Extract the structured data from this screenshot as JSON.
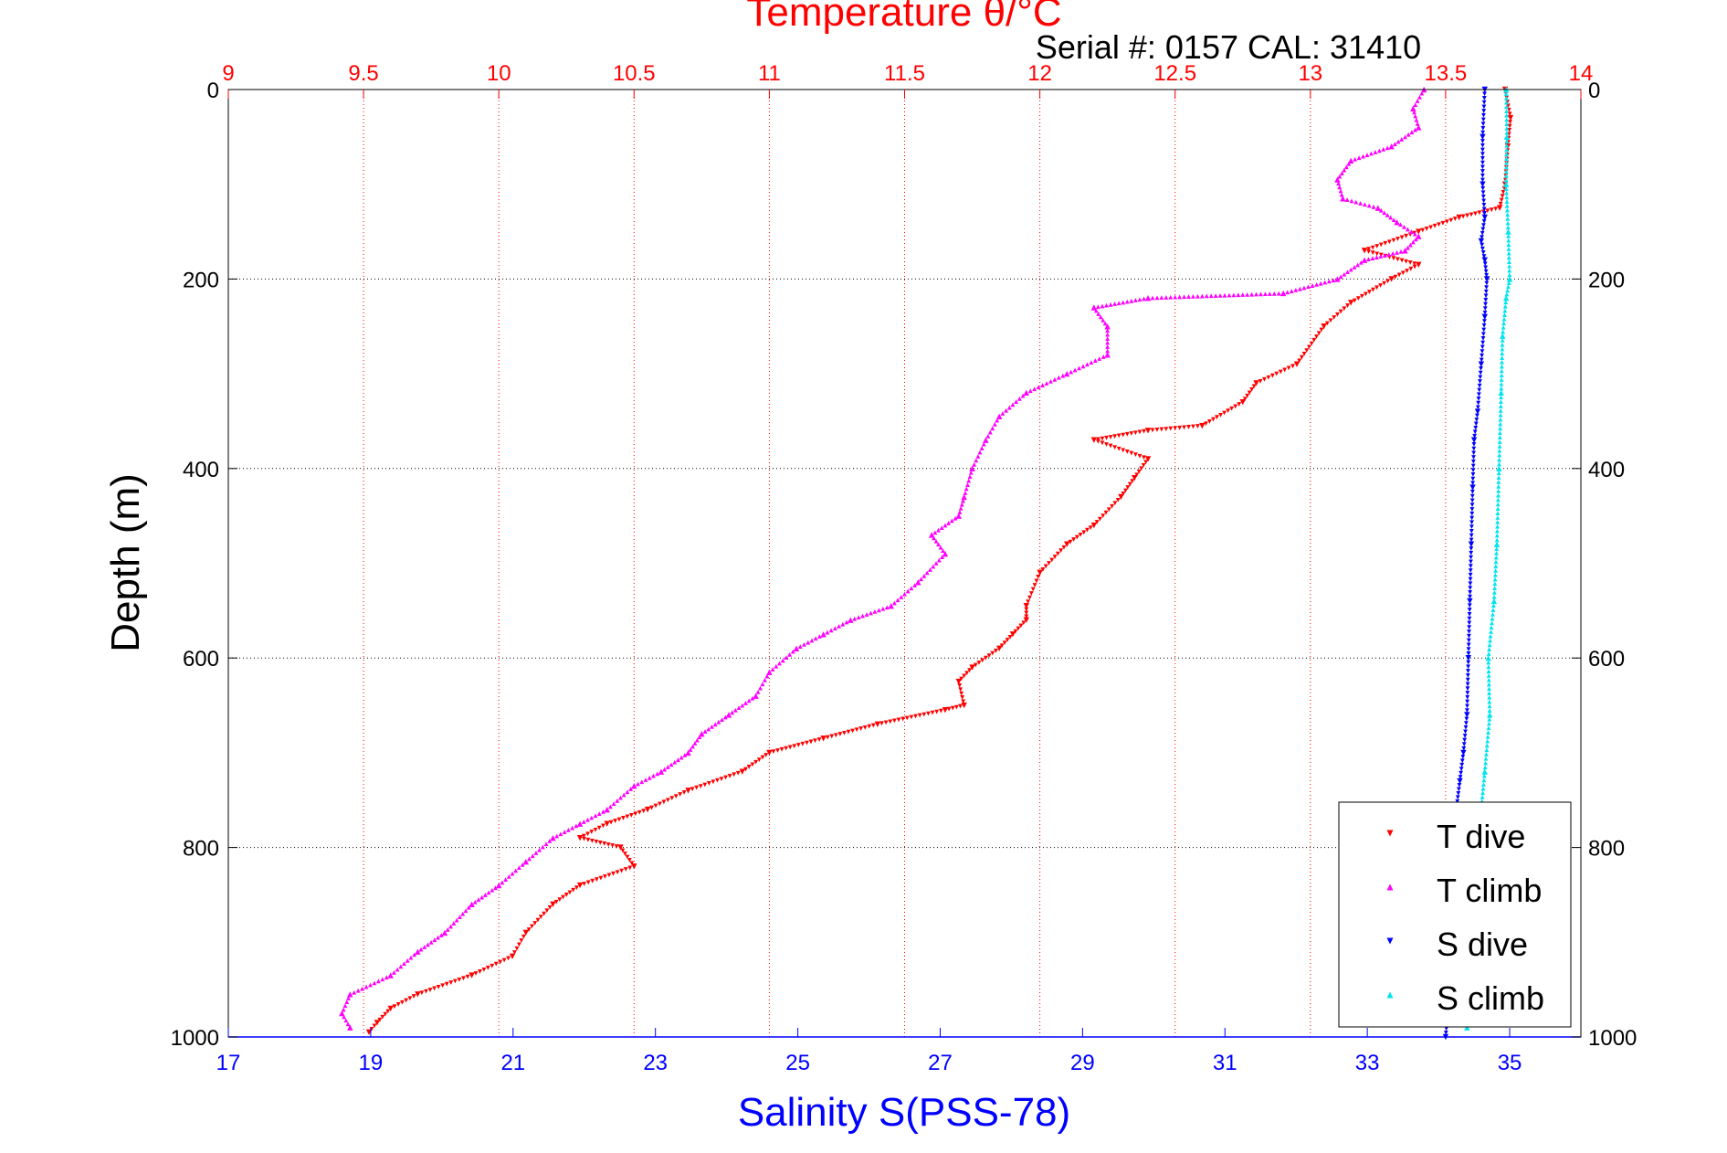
{
  "chart_data": {
    "type": "scatter",
    "title": "Temperature θ/°C",
    "subtitle": "Serial #: 0157  CAL: 31410",
    "ylabel": "Depth (m)",
    "xlabel_bottom": "Salinity S(PSS-78)",
    "ylim": [
      0,
      1000
    ],
    "y_reversed": true,
    "y_ticks": [
      0,
      200,
      400,
      600,
      800,
      1000
    ],
    "temperature_axis": {
      "range": [
        9,
        14
      ],
      "ticks": [
        9,
        9.5,
        10,
        10.5,
        11,
        11.5,
        12,
        12.5,
        13,
        13.5,
        14
      ],
      "tick_labels": [
        "9",
        "9.5",
        "10",
        "10.5",
        "11",
        "11.5",
        "12",
        "12.5",
        "13",
        "13.5",
        "14"
      ]
    },
    "salinity_axis": {
      "range": [
        17,
        36
      ],
      "ticks": [
        17,
        19,
        21,
        23,
        25,
        27,
        29,
        31,
        33,
        35
      ],
      "tick_labels": [
        "17",
        "19",
        "21",
        "23",
        "25",
        "27",
        "29",
        "31",
        "33",
        "35"
      ]
    },
    "grid": true,
    "legend_position": "bottom-right",
    "series": [
      {
        "name": "T dive",
        "axis": "temperature",
        "color": "#ff0000",
        "marker": "down-triangle",
        "points": [
          [
            13.72,
            0
          ],
          [
            13.74,
            30
          ],
          [
            13.73,
            60
          ],
          [
            13.72,
            100
          ],
          [
            13.7,
            125
          ],
          [
            13.55,
            135
          ],
          [
            13.4,
            150
          ],
          [
            13.2,
            170
          ],
          [
            13.4,
            185
          ],
          [
            13.3,
            200
          ],
          [
            13.15,
            225
          ],
          [
            13.05,
            250
          ],
          [
            12.95,
            290
          ],
          [
            12.8,
            310
          ],
          [
            12.75,
            330
          ],
          [
            12.6,
            355
          ],
          [
            12.4,
            360
          ],
          [
            12.2,
            370
          ],
          [
            12.4,
            390
          ],
          [
            12.35,
            410
          ],
          [
            12.3,
            430
          ],
          [
            12.2,
            460
          ],
          [
            12.1,
            480
          ],
          [
            12.0,
            510
          ],
          [
            11.95,
            545
          ],
          [
            11.95,
            560
          ],
          [
            11.9,
            575
          ],
          [
            11.85,
            590
          ],
          [
            11.75,
            610
          ],
          [
            11.7,
            625
          ],
          [
            11.72,
            650
          ],
          [
            11.65,
            655
          ],
          [
            11.4,
            670
          ],
          [
            11.2,
            685
          ],
          [
            11.0,
            700
          ],
          [
            10.9,
            720
          ],
          [
            10.7,
            740
          ],
          [
            10.55,
            760
          ],
          [
            10.4,
            775
          ],
          [
            10.3,
            790
          ],
          [
            10.45,
            800
          ],
          [
            10.5,
            820
          ],
          [
            10.3,
            840
          ],
          [
            10.2,
            860
          ],
          [
            10.1,
            890
          ],
          [
            10.05,
            915
          ],
          [
            9.9,
            935
          ],
          [
            9.7,
            955
          ],
          [
            9.6,
            970
          ],
          [
            9.55,
            985
          ],
          [
            9.52,
            995
          ]
        ]
      },
      {
        "name": "T climb",
        "axis": "temperature",
        "color": "#ff00ff",
        "marker": "up-triangle",
        "points": [
          [
            13.42,
            0
          ],
          [
            13.38,
            20
          ],
          [
            13.4,
            40
          ],
          [
            13.3,
            60
          ],
          [
            13.15,
            75
          ],
          [
            13.1,
            95
          ],
          [
            13.12,
            115
          ],
          [
            13.25,
            125
          ],
          [
            13.32,
            140
          ],
          [
            13.4,
            155
          ],
          [
            13.35,
            170
          ],
          [
            13.2,
            180
          ],
          [
            13.1,
            200
          ],
          [
            12.9,
            215
          ],
          [
            12.4,
            220
          ],
          [
            12.2,
            230
          ],
          [
            12.25,
            250
          ],
          [
            12.25,
            280
          ],
          [
            12.1,
            300
          ],
          [
            11.95,
            320
          ],
          [
            11.85,
            345
          ],
          [
            11.8,
            370
          ],
          [
            11.75,
            400
          ],
          [
            11.72,
            430
          ],
          [
            11.7,
            450
          ],
          [
            11.6,
            470
          ],
          [
            11.65,
            490
          ],
          [
            11.55,
            520
          ],
          [
            11.45,
            545
          ],
          [
            11.3,
            560
          ],
          [
            11.2,
            575
          ],
          [
            11.1,
            590
          ],
          [
            11.0,
            615
          ],
          [
            10.95,
            640
          ],
          [
            10.85,
            660
          ],
          [
            10.75,
            680
          ],
          [
            10.7,
            700
          ],
          [
            10.6,
            720
          ],
          [
            10.5,
            735
          ],
          [
            10.4,
            760
          ],
          [
            10.3,
            775
          ],
          [
            10.2,
            790
          ],
          [
            10.1,
            815
          ],
          [
            10.0,
            840
          ],
          [
            9.9,
            860
          ],
          [
            9.8,
            890
          ],
          [
            9.7,
            910
          ],
          [
            9.6,
            935
          ],
          [
            9.45,
            955
          ],
          [
            9.42,
            975
          ],
          [
            9.45,
            990
          ]
        ]
      },
      {
        "name": "S dive",
        "axis": "salinity",
        "color": "#0000ff",
        "marker": "down-triangle",
        "points": [
          [
            34.65,
            0
          ],
          [
            34.62,
            50
          ],
          [
            34.62,
            100
          ],
          [
            34.65,
            135
          ],
          [
            34.6,
            160
          ],
          [
            34.65,
            180
          ],
          [
            34.68,
            200
          ],
          [
            34.65,
            240
          ],
          [
            34.6,
            290
          ],
          [
            34.55,
            340
          ],
          [
            34.5,
            370
          ],
          [
            34.48,
            420
          ],
          [
            34.46,
            480
          ],
          [
            34.44,
            540
          ],
          [
            34.42,
            600
          ],
          [
            34.4,
            660
          ],
          [
            34.35,
            700
          ],
          [
            34.3,
            730
          ],
          [
            34.25,
            760
          ],
          [
            34.22,
            800
          ],
          [
            34.18,
            860
          ],
          [
            34.15,
            920
          ],
          [
            34.15,
            960
          ],
          [
            34.1,
            1000
          ]
        ]
      },
      {
        "name": "S climb",
        "axis": "salinity",
        "color": "#00e5ee",
        "marker": "up-triangle",
        "points": [
          [
            34.95,
            0
          ],
          [
            34.96,
            50
          ],
          [
            34.95,
            100
          ],
          [
            34.98,
            150
          ],
          [
            35.0,
            200
          ],
          [
            34.95,
            220
          ],
          [
            34.9,
            260
          ],
          [
            34.88,
            320
          ],
          [
            34.85,
            400
          ],
          [
            34.82,
            480
          ],
          [
            34.78,
            540
          ],
          [
            34.7,
            600
          ],
          [
            34.72,
            660
          ],
          [
            34.65,
            720
          ],
          [
            34.6,
            760
          ],
          [
            34.55,
            820
          ],
          [
            34.5,
            880
          ],
          [
            34.45,
            940
          ],
          [
            34.4,
            990
          ]
        ]
      }
    ]
  }
}
